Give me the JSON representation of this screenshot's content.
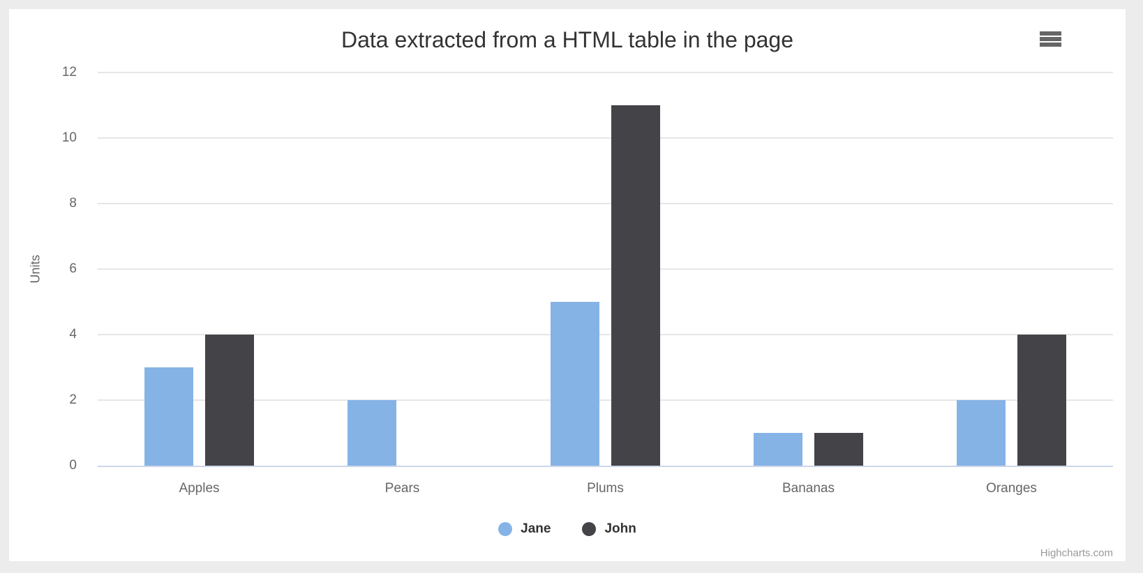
{
  "page": {
    "background_color": "#ececec",
    "card_color": "#ffffff"
  },
  "header": {
    "title": "Data extracted from a HTML table in the page",
    "menu_icon": "hamburger-icon"
  },
  "credit": {
    "label": "Highcharts.com"
  },
  "colors": {
    "title_text": "#333333",
    "axis_text": "#666666",
    "legend_text": "#333333",
    "gridline": "#e6e6e6",
    "axis_line": "#ccd6eb",
    "credit_text": "#999999",
    "menu_icon": "#666666",
    "series_jane": "#86b3e6",
    "series_john": "#434348"
  },
  "chart_data": {
    "type": "bar",
    "title": "Data extracted from a HTML table in the page",
    "categories": [
      "Apples",
      "Pears",
      "Plums",
      "Bananas",
      "Oranges"
    ],
    "series": [
      {
        "name": "Jane",
        "color": "#86b3e6",
        "values": [
          3,
          2,
          5,
          1,
          2
        ]
      },
      {
        "name": "John",
        "color": "#434348",
        "values": [
          4,
          0,
          11,
          1,
          4
        ]
      }
    ],
    "xlabel": "",
    "ylabel": "Units",
    "ylim": [
      0,
      12
    ],
    "yticks": [
      0,
      2,
      4,
      6,
      8,
      10,
      12
    ],
    "grid": true,
    "legend_position": "bottom",
    "bar_layout": {
      "group_padding": 0.2,
      "point_padding": 0.1
    }
  }
}
